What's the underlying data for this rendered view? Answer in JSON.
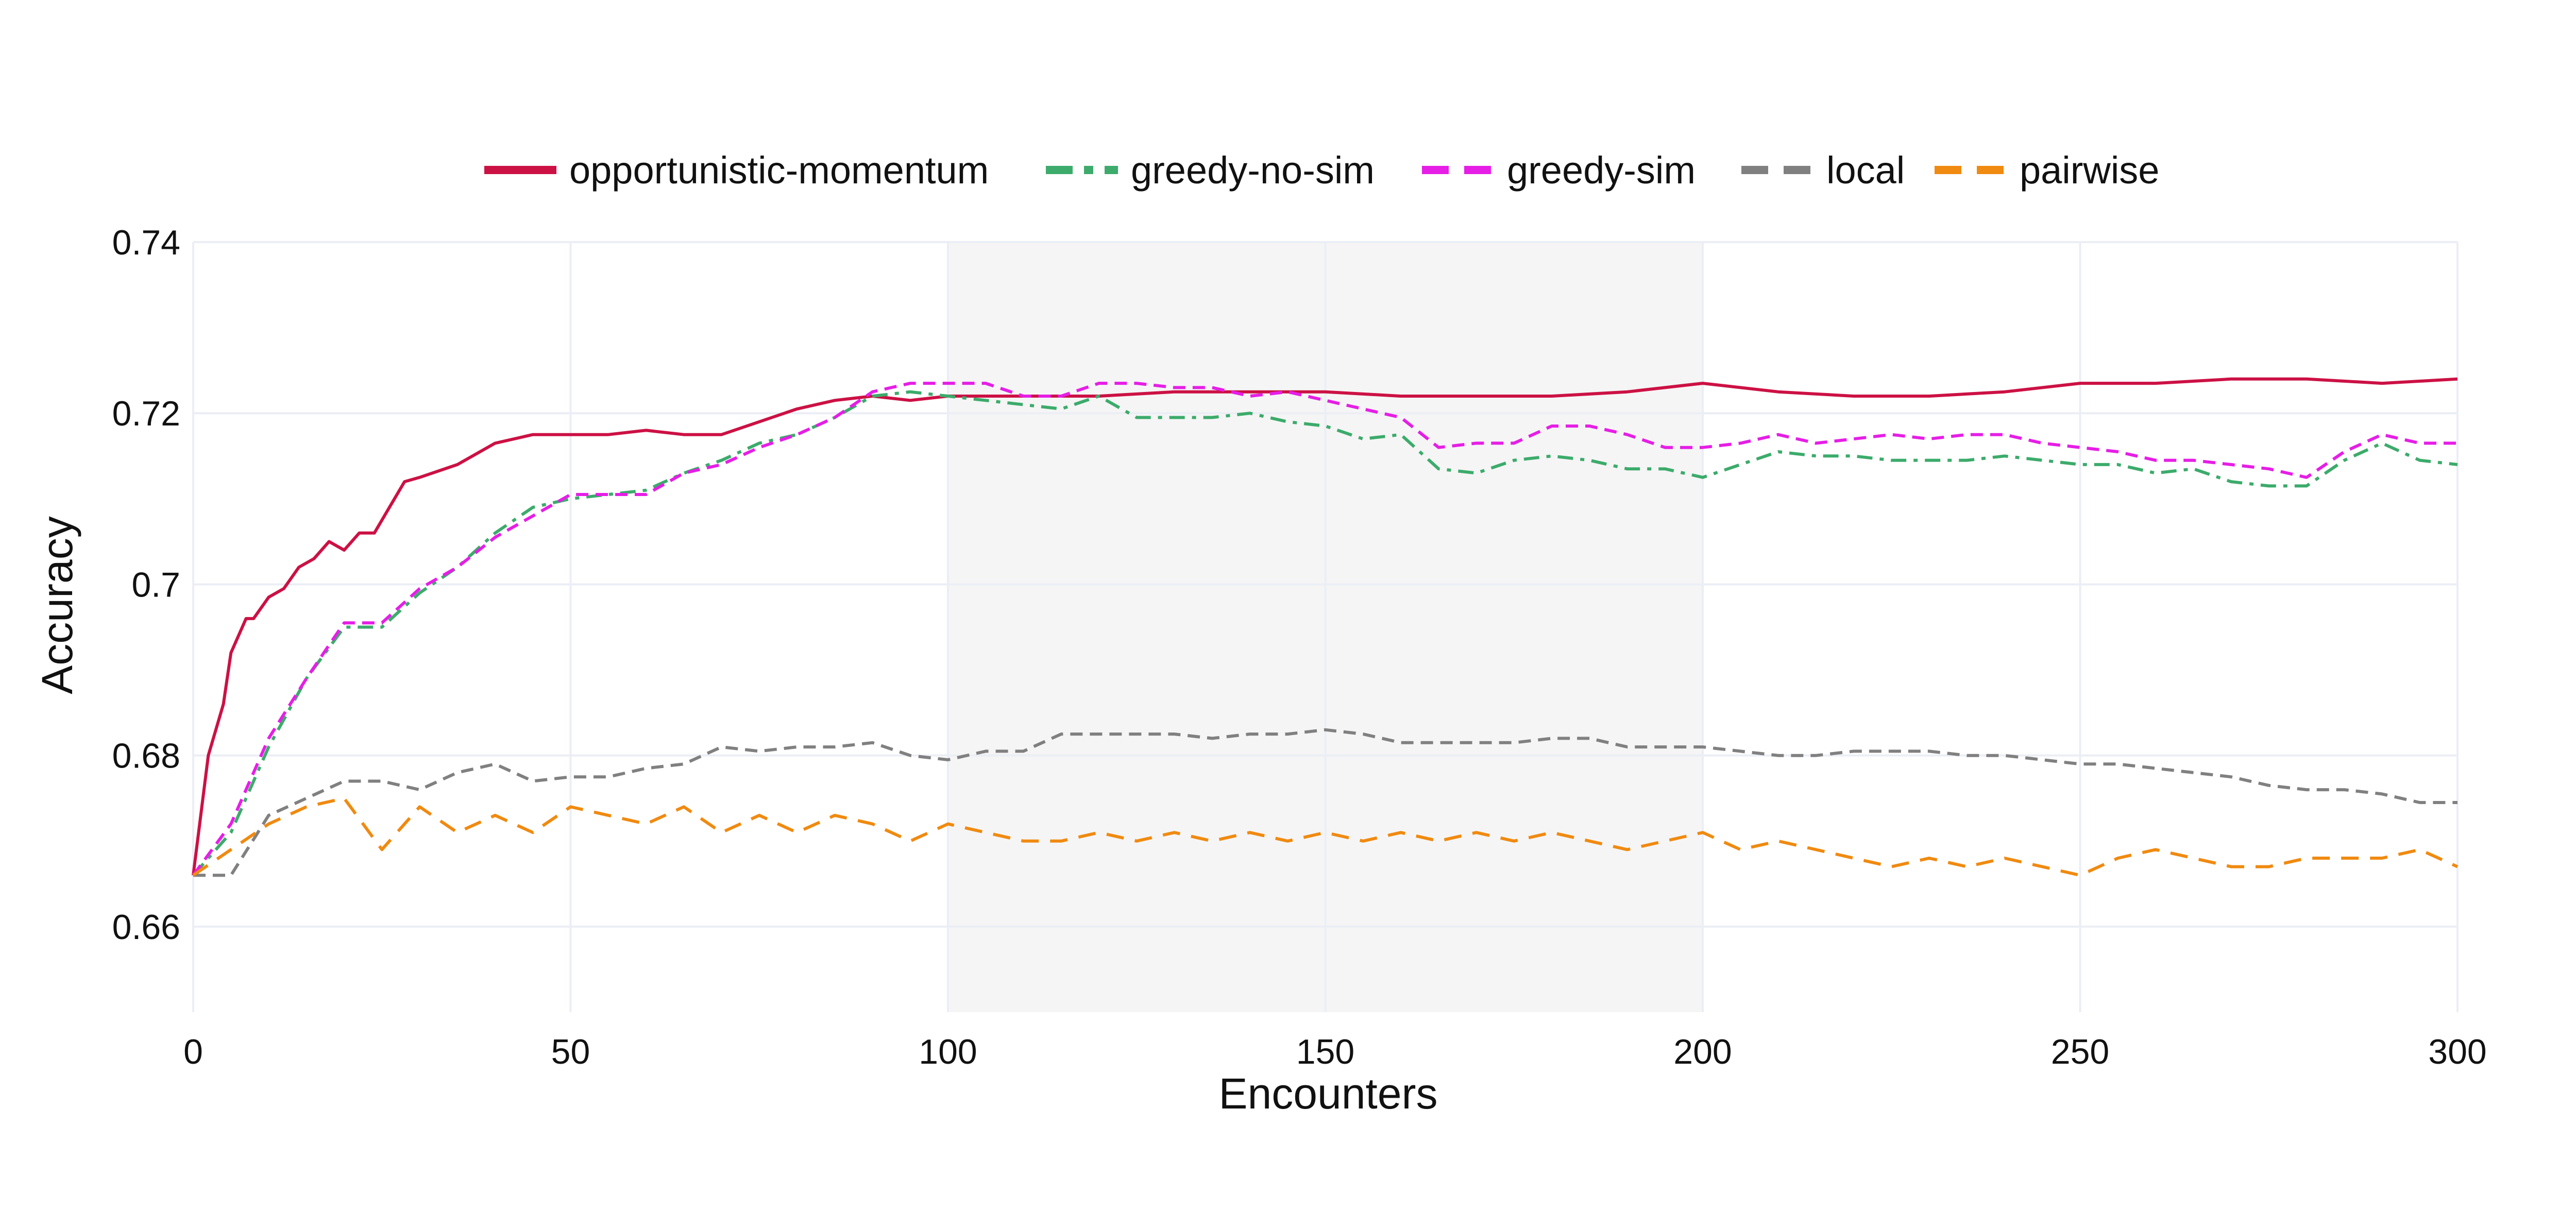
{
  "chart_data": {
    "type": "line",
    "title": "",
    "xlabel": "Encounters",
    "ylabel": "Accuracy",
    "xlim": [
      0,
      300
    ],
    "ylim": [
      0.65,
      0.74
    ],
    "x_ticks": [
      0,
      50,
      100,
      150,
      200,
      250,
      300
    ],
    "x_tick_labels": [
      "0",
      "50",
      "100",
      "150",
      "200",
      "250",
      "300"
    ],
    "y_ticks": [
      0.66,
      0.68,
      0.7,
      0.72,
      0.74
    ],
    "y_tick_labels": [
      "0.66",
      "0.68",
      "0.7",
      "0.72",
      "0.74"
    ],
    "grid": true,
    "legend_position": "top-center",
    "shaded_region": {
      "x_start": 100,
      "x_end": 200,
      "color": "#f5f5f5"
    },
    "series": [
      {
        "name": "opportunistic-momentum",
        "color": "#cc1144",
        "dash": "solid",
        "x": [
          0,
          2,
          4,
          5,
          7,
          8,
          10,
          12,
          14,
          16,
          18,
          20,
          22,
          24,
          26,
          28,
          30,
          35,
          40,
          45,
          50,
          55,
          60,
          65,
          70,
          75,
          80,
          85,
          90,
          95,
          100,
          110,
          120,
          130,
          140,
          150,
          160,
          170,
          180,
          190,
          200,
          210,
          220,
          230,
          240,
          250,
          260,
          270,
          280,
          290,
          300
        ],
        "y": [
          0.666,
          0.68,
          0.686,
          0.692,
          0.696,
          0.696,
          0.6985,
          0.6995,
          0.702,
          0.703,
          0.705,
          0.704,
          0.706,
          0.706,
          0.709,
          0.712,
          0.7125,
          0.714,
          0.7165,
          0.7175,
          0.7175,
          0.7175,
          0.718,
          0.7175,
          0.7175,
          0.719,
          0.7205,
          0.7215,
          0.722,
          0.7215,
          0.722,
          0.722,
          0.722,
          0.7225,
          0.7225,
          0.7225,
          0.722,
          0.722,
          0.722,
          0.7225,
          0.7235,
          0.7225,
          0.722,
          0.722,
          0.7225,
          0.7235,
          0.7235,
          0.724,
          0.724,
          0.7235,
          0.724
        ]
      },
      {
        "name": "greedy-no-sim",
        "color": "#3cab6b",
        "dash": "dashdot",
        "x": [
          0,
          5,
          10,
          15,
          20,
          25,
          30,
          35,
          40,
          45,
          50,
          55,
          60,
          65,
          70,
          75,
          80,
          85,
          90,
          95,
          100,
          105,
          110,
          115,
          120,
          125,
          130,
          135,
          140,
          145,
          150,
          155,
          160,
          165,
          170,
          175,
          180,
          185,
          190,
          195,
          200,
          205,
          210,
          215,
          220,
          225,
          230,
          235,
          240,
          245,
          250,
          255,
          260,
          265,
          270,
          275,
          280,
          285,
          290,
          295,
          300
        ],
        "y": [
          0.666,
          0.671,
          0.681,
          0.689,
          0.695,
          0.695,
          0.699,
          0.702,
          0.706,
          0.709,
          0.71,
          0.7105,
          0.711,
          0.713,
          0.7145,
          0.7165,
          0.7175,
          0.7195,
          0.722,
          0.7225,
          0.722,
          0.7215,
          0.721,
          0.7205,
          0.722,
          0.7195,
          0.7195,
          0.7195,
          0.72,
          0.719,
          0.7185,
          0.717,
          0.7175,
          0.7135,
          0.713,
          0.7145,
          0.715,
          0.7145,
          0.7135,
          0.7135,
          0.7125,
          0.714,
          0.7155,
          0.715,
          0.715,
          0.7145,
          0.7145,
          0.7145,
          0.715,
          0.7145,
          0.714,
          0.714,
          0.713,
          0.7135,
          0.712,
          0.7115,
          0.7115,
          0.7145,
          0.7165,
          0.7145,
          0.714
        ]
      },
      {
        "name": "greedy-sim",
        "color": "#e61ee6",
        "dash": "dash",
        "x": [
          0,
          5,
          10,
          15,
          20,
          25,
          30,
          35,
          40,
          45,
          50,
          55,
          60,
          65,
          70,
          75,
          80,
          85,
          90,
          95,
          100,
          105,
          110,
          115,
          120,
          125,
          130,
          135,
          140,
          145,
          150,
          155,
          160,
          165,
          170,
          175,
          180,
          185,
          190,
          195,
          200,
          205,
          210,
          215,
          220,
          225,
          230,
          235,
          240,
          245,
          250,
          255,
          260,
          265,
          270,
          275,
          280,
          285,
          290,
          295,
          300
        ],
        "y": [
          0.666,
          0.672,
          0.682,
          0.689,
          0.6955,
          0.6955,
          0.6995,
          0.702,
          0.7055,
          0.708,
          0.7105,
          0.7105,
          0.7105,
          0.713,
          0.714,
          0.716,
          0.7175,
          0.7195,
          0.7225,
          0.7235,
          0.7235,
          0.7235,
          0.722,
          0.722,
          0.7235,
          0.7235,
          0.723,
          0.723,
          0.722,
          0.7225,
          0.7215,
          0.7205,
          0.7195,
          0.716,
          0.7165,
          0.7165,
          0.7185,
          0.7185,
          0.7175,
          0.716,
          0.716,
          0.7165,
          0.7175,
          0.7165,
          0.717,
          0.7175,
          0.717,
          0.7175,
          0.7175,
          0.7165,
          0.716,
          0.7155,
          0.7145,
          0.7145,
          0.714,
          0.7135,
          0.7125,
          0.7155,
          0.7175,
          0.7165,
          0.7165
        ]
      },
      {
        "name": "local",
        "color": "#808080",
        "dash": "dash",
        "x": [
          0,
          5,
          10,
          15,
          20,
          25,
          30,
          35,
          40,
          45,
          50,
          55,
          60,
          65,
          70,
          75,
          80,
          85,
          90,
          95,
          100,
          105,
          110,
          115,
          120,
          125,
          130,
          135,
          140,
          145,
          150,
          155,
          160,
          165,
          170,
          175,
          180,
          185,
          190,
          195,
          200,
          205,
          210,
          215,
          220,
          225,
          230,
          235,
          240,
          245,
          250,
          255,
          260,
          265,
          270,
          275,
          280,
          285,
          290,
          295,
          300
        ],
        "y": [
          0.666,
          0.666,
          0.673,
          0.675,
          0.677,
          0.677,
          0.676,
          0.678,
          0.679,
          0.677,
          0.6775,
          0.6775,
          0.6785,
          0.679,
          0.681,
          0.6805,
          0.681,
          0.681,
          0.6815,
          0.68,
          0.6795,
          0.6805,
          0.6805,
          0.6825,
          0.6825,
          0.6825,
          0.6825,
          0.682,
          0.6825,
          0.6825,
          0.683,
          0.6825,
          0.6815,
          0.6815,
          0.6815,
          0.6815,
          0.682,
          0.682,
          0.681,
          0.681,
          0.681,
          0.6805,
          0.68,
          0.68,
          0.6805,
          0.6805,
          0.6805,
          0.68,
          0.68,
          0.6795,
          0.679,
          0.679,
          0.6785,
          0.678,
          0.6775,
          0.6765,
          0.676,
          0.676,
          0.6755,
          0.6745,
          0.6745
        ]
      },
      {
        "name": "pairwise",
        "color": "#f08a10",
        "dash": "longdash",
        "x": [
          0,
          5,
          10,
          15,
          20,
          25,
          30,
          35,
          40,
          45,
          50,
          55,
          60,
          65,
          70,
          75,
          80,
          85,
          90,
          95,
          100,
          105,
          110,
          115,
          120,
          125,
          130,
          135,
          140,
          145,
          150,
          155,
          160,
          165,
          170,
          175,
          180,
          185,
          190,
          195,
          200,
          205,
          210,
          215,
          220,
          225,
          230,
          235,
          240,
          245,
          250,
          255,
          260,
          265,
          270,
          275,
          280,
          285,
          290,
          295,
          300
        ],
        "y": [
          0.666,
          0.669,
          0.672,
          0.674,
          0.675,
          0.669,
          0.674,
          0.671,
          0.673,
          0.671,
          0.674,
          0.673,
          0.672,
          0.674,
          0.671,
          0.673,
          0.671,
          0.673,
          0.672,
          0.67,
          0.672,
          0.671,
          0.67,
          0.67,
          0.671,
          0.67,
          0.671,
          0.67,
          0.671,
          0.67,
          0.671,
          0.67,
          0.671,
          0.67,
          0.671,
          0.67,
          0.671,
          0.67,
          0.669,
          0.67,
          0.671,
          0.669,
          0.67,
          0.669,
          0.668,
          0.667,
          0.668,
          0.667,
          0.668,
          0.667,
          0.666,
          0.668,
          0.669,
          0.668,
          0.667,
          0.667,
          0.668,
          0.668,
          0.668,
          0.669,
          0.667
        ]
      }
    ]
  }
}
